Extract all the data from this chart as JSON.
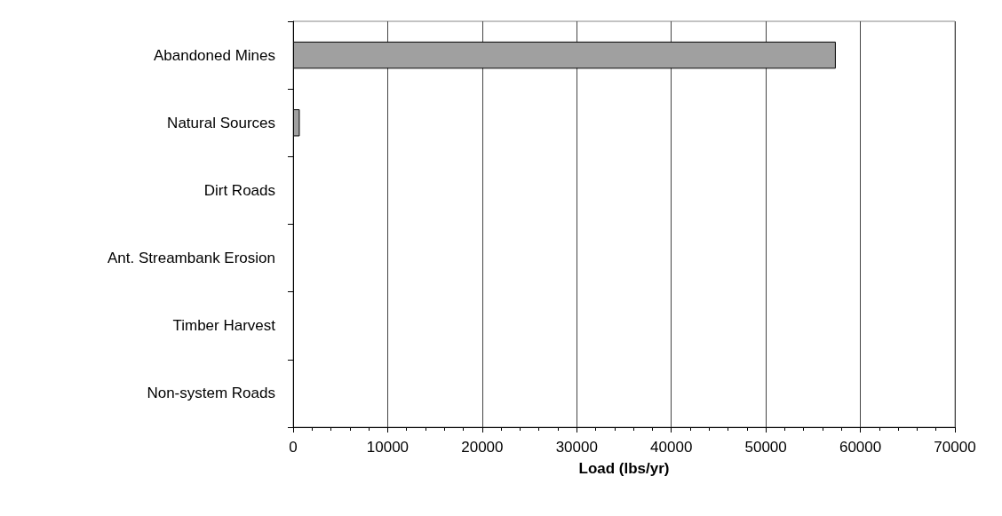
{
  "chart_data": {
    "type": "bar",
    "orientation": "horizontal",
    "xlabel": "Load (lbs/yr)",
    "categories": [
      "Abandoned Mines",
      "Natural Sources",
      "Dirt Roads",
      "Ant. Streambank Erosion",
      "Timber Harvest",
      "Non-system Roads"
    ],
    "values": [
      57400,
      700,
      0,
      0,
      0,
      0
    ],
    "color": "#a0a0a0",
    "xlim": [
      0,
      70000
    ],
    "xticks": [
      0,
      10000,
      20000,
      30000,
      40000,
      50000,
      60000,
      70000
    ],
    "grid": "x"
  }
}
